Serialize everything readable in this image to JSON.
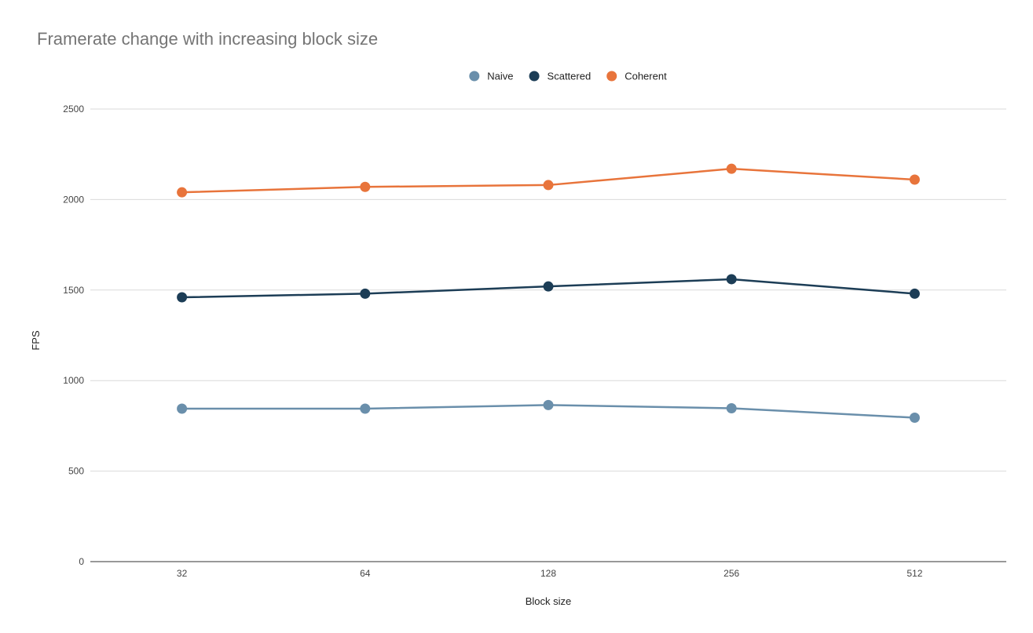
{
  "chart_data": {
    "type": "line",
    "title": "Framerate change with increasing block size",
    "xlabel": "Block size",
    "ylabel": "FPS",
    "categories": [
      "32",
      "64",
      "128",
      "256",
      "512"
    ],
    "ylim": [
      0,
      2500
    ],
    "yticks": [
      "0",
      "500",
      "1000",
      "1500",
      "2000",
      "2500"
    ],
    "grid": true,
    "legend_position": "top-center",
    "series": [
      {
        "name": "Naive",
        "color": "#6a8fab",
        "values": [
          845,
          845,
          865,
          847,
          795
        ]
      },
      {
        "name": "Scattered",
        "color": "#1c3d56",
        "values": [
          1460,
          1480,
          1520,
          1560,
          1480
        ]
      },
      {
        "name": "Coherent",
        "color": "#e8743b",
        "values": [
          2040,
          2070,
          2080,
          2170,
          2110
        ]
      }
    ]
  }
}
